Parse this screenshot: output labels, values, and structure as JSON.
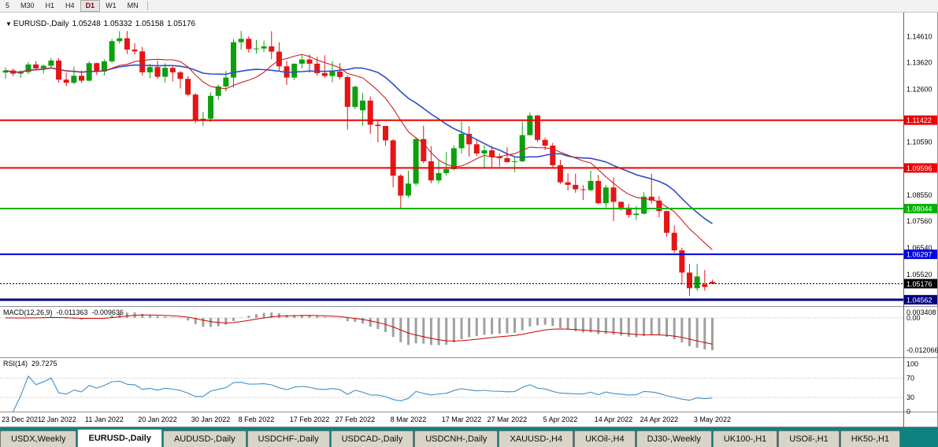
{
  "toolbar": {
    "timeframes": [
      "5",
      "M30",
      "H1",
      "H4",
      "D1",
      "W1",
      "MN"
    ],
    "selected": "D1"
  },
  "header": {
    "symbol": "EURUSD-,Daily",
    "open": "1.05248",
    "high": "1.05332",
    "low": "1.05158",
    "close": "1.05176"
  },
  "price_axis": {
    "labels": [
      {
        "text": "1.14610",
        "price": 1.1461
      },
      {
        "text": "1.13620",
        "price": 1.1362
      },
      {
        "text": "1.12600",
        "price": 1.126
      },
      {
        "text": "1.10590",
        "price": 1.1059
      },
      {
        "text": "1.08550",
        "price": 1.0855
      },
      {
        "text": "1.07560",
        "price": 1.0756
      },
      {
        "text": "1.06540",
        "price": 1.0654
      },
      {
        "text": "1.05520",
        "price": 1.0552
      }
    ]
  },
  "hlines": [
    {
      "price": 1.11422,
      "label": "1.11422",
      "color": "#ee0000",
      "width": 2
    },
    {
      "price": 1.09596,
      "label": "1.09596",
      "color": "#ee0000",
      "width": 2
    },
    {
      "price": 1.08044,
      "label": "1.08044",
      "color": "#00b400",
      "width": 2
    },
    {
      "price": 1.06297,
      "label": "1.06297",
      "color": "#0000e0",
      "width": 2
    },
    {
      "price": 1.04562,
      "label": "1.04562",
      "color": "#000080",
      "width": 3
    }
  ],
  "price_line": {
    "price": 1.05176,
    "label": "1.05176",
    "color": "#000000"
  },
  "macd": {
    "title": "MACD(12,26,9)",
    "value_main": "-0.011363",
    "value_signal": "-0.009636",
    "axis": {
      "max": "0.003408",
      "zero": "0.00",
      "min": "-0.012066"
    }
  },
  "rsi": {
    "title": "RSI(14)",
    "value": "29.7275",
    "axis": [
      {
        "text": "100",
        "value": 100
      },
      {
        "text": "70",
        "value": 70
      },
      {
        "text": "30",
        "value": 30
      },
      {
        "text": "0",
        "value": 0
      }
    ],
    "levels": [
      70,
      30
    ]
  },
  "x_axis": {
    "labels": [
      "23 Dec 2021",
      "2 Jan 2022",
      "11 Jan 2022",
      "20 Jan 2022",
      "30 Jan 2022",
      "8 Feb 2022",
      "17 Feb 2022",
      "27 Feb 2022",
      "8 Mar 2022",
      "17 Mar 2022",
      "27 Mar 2022",
      "5 Apr 2022",
      "14 Apr 2022",
      "24 Apr 2022",
      "3 May 2022"
    ],
    "candle_indices": [
      0,
      7,
      13,
      20,
      27,
      33,
      40,
      46,
      53,
      60,
      66,
      73,
      80,
      86,
      93
    ]
  },
  "tabs": [
    {
      "label": "USDX,Weekly",
      "active": false
    },
    {
      "label": "EURUSD-,Daily",
      "active": true
    },
    {
      "label": "AUDUSD-,Daily",
      "active": false
    },
    {
      "label": "USDCHF-,Daily",
      "active": false
    },
    {
      "label": "USDCAD-,Daily",
      "active": false
    },
    {
      "label": "USDCNH-,Daily",
      "active": false
    },
    {
      "label": "XAUUSD-,H4",
      "active": false
    },
    {
      "label": "UKOil-,H4",
      "active": false
    },
    {
      "label": "DJ30-,Weekly",
      "active": false
    },
    {
      "label": "UK100-,H1",
      "active": false
    },
    {
      "label": "USOil-,H1",
      "active": false
    },
    {
      "label": "HK50-,H1",
      "active": false
    }
  ],
  "theme": {
    "candle_up": "#0ca00c",
    "candle_down": "#e51515",
    "ma_slow": "#2f4fc6",
    "ma_fast": "#cc2020",
    "macd_hist": "#a0a0a0",
    "macd_signal": "#cc0000",
    "rsi_line": "#4090c8",
    "grid_dotted": "#b0b0b0",
    "tabbar_bg": "#0e8181",
    "toolbar_bg": "#f2f2f2",
    "chart_bg": "#ffffff"
  },
  "chart_data": {
    "type": "candlestick",
    "symbol": "EURUSD-",
    "timeframe": "Daily",
    "visible_price_range": [
      1.0435,
      1.1553
    ],
    "ohlc_format": "[open, high, low, close]",
    "candles": [
      [
        1.1324,
        1.1344,
        1.13,
        1.1332
      ],
      [
        1.1332,
        1.134,
        1.131,
        1.132
      ],
      [
        1.132,
        1.1333,
        1.1304,
        1.1326
      ],
      [
        1.1326,
        1.1365,
        1.1318,
        1.1355
      ],
      [
        1.1355,
        1.1368,
        1.1332,
        1.134
      ],
      [
        1.134,
        1.1355,
        1.132,
        1.135
      ],
      [
        1.135,
        1.138,
        1.1342,
        1.137
      ],
      [
        1.137,
        1.1379,
        1.1285,
        1.1297
      ],
      [
        1.1297,
        1.1324,
        1.1272,
        1.1285
      ],
      [
        1.1285,
        1.1347,
        1.128,
        1.1312
      ],
      [
        1.1312,
        1.1332,
        1.1285,
        1.1293
      ],
      [
        1.1293,
        1.1367,
        1.129,
        1.136
      ],
      [
        1.136,
        1.1362,
        1.1315,
        1.1328
      ],
      [
        1.1328,
        1.1375,
        1.1313,
        1.1367
      ],
      [
        1.1367,
        1.1453,
        1.136,
        1.1444
      ],
      [
        1.1444,
        1.1482,
        1.1435,
        1.1455
      ],
      [
        1.1455,
        1.1483,
        1.1395,
        1.1412
      ],
      [
        1.1412,
        1.1436,
        1.1392,
        1.1405
      ],
      [
        1.1405,
        1.1422,
        1.1313,
        1.1325
      ],
      [
        1.1325,
        1.1357,
        1.1302,
        1.1345
      ],
      [
        1.1345,
        1.1369,
        1.13,
        1.1308
      ],
      [
        1.1308,
        1.136,
        1.1286,
        1.1342
      ],
      [
        1.1342,
        1.1348,
        1.129,
        1.1325
      ],
      [
        1.1325,
        1.133,
        1.1264,
        1.13
      ],
      [
        1.13,
        1.131,
        1.1233,
        1.124
      ],
      [
        1.124,
        1.1245,
        1.1131,
        1.1144
      ],
      [
        1.1144,
        1.1174,
        1.1121,
        1.1148
      ],
      [
        1.1148,
        1.1248,
        1.1135,
        1.1235
      ],
      [
        1.1235,
        1.1279,
        1.122,
        1.1271
      ],
      [
        1.1271,
        1.133,
        1.1252,
        1.1305
      ],
      [
        1.1305,
        1.1452,
        1.1266,
        1.144
      ],
      [
        1.144,
        1.1483,
        1.1411,
        1.1453
      ],
      [
        1.1453,
        1.1462,
        1.14,
        1.1414
      ],
      [
        1.1414,
        1.1448,
        1.1396,
        1.1416
      ],
      [
        1.1416,
        1.1446,
        1.1402,
        1.1424
      ],
      [
        1.1424,
        1.1482,
        1.1375,
        1.1404
      ],
      [
        1.1404,
        1.144,
        1.133,
        1.1348
      ],
      [
        1.1348,
        1.1368,
        1.1277,
        1.1305
      ],
      [
        1.1305,
        1.1359,
        1.1295,
        1.1358
      ],
      [
        1.1358,
        1.1395,
        1.134,
        1.1374
      ],
      [
        1.1374,
        1.1393,
        1.1324,
        1.1358
      ],
      [
        1.1358,
        1.1384,
        1.1312,
        1.1322
      ],
      [
        1.1322,
        1.139,
        1.1305,
        1.1311
      ],
      [
        1.1311,
        1.1368,
        1.1287,
        1.1328
      ],
      [
        1.1328,
        1.136,
        1.1298,
        1.1307
      ],
      [
        1.1307,
        1.1314,
        1.1106,
        1.1193
      ],
      [
        1.1193,
        1.1274,
        1.1184,
        1.127
      ],
      [
        1.118,
        1.1246,
        1.1121,
        1.1217
      ],
      [
        1.1217,
        1.1233,
        1.109,
        1.1125
      ],
      [
        1.1125,
        1.1144,
        1.1058,
        1.112
      ],
      [
        1.112,
        1.1121,
        1.1045,
        1.1065
      ],
      [
        1.1065,
        1.107,
        1.0886,
        1.093
      ],
      [
        1.093,
        1.0936,
        1.0806,
        1.0854
      ],
      [
        1.0854,
        1.095,
        1.0846,
        1.09
      ],
      [
        1.09,
        1.1078,
        1.0892,
        1.107
      ],
      [
        1.107,
        1.1121,
        1.0977,
        1.0985
      ],
      [
        1.0985,
        1.1043,
        1.0901,
        1.0912
      ],
      [
        1.0912,
        1.0992,
        1.0902,
        1.094
      ],
      [
        1.094,
        1.102,
        1.093,
        1.0955
      ],
      [
        1.0955,
        1.1046,
        1.095,
        1.1035
      ],
      [
        1.1035,
        1.1137,
        1.1015,
        1.109
      ],
      [
        1.109,
        1.1119,
        1.1003,
        1.105
      ],
      [
        1.105,
        1.1069,
        1.1005,
        1.1015
      ],
      [
        1.1015,
        1.1046,
        1.0962,
        1.1027
      ],
      [
        1.1027,
        1.1044,
        1.0963,
        1.1003
      ],
      [
        1.1003,
        1.1014,
        1.0965,
        1.0997
      ],
      [
        1.0997,
        1.1039,
        1.098,
        1.0982
      ],
      [
        1.0982,
        1.1,
        1.0944,
        1.0985
      ],
      [
        1.0985,
        1.1137,
        1.0982,
        1.1085
      ],
      [
        1.1085,
        1.1171,
        1.1083,
        1.116
      ],
      [
        1.116,
        1.1162,
        1.106,
        1.1067
      ],
      [
        1.1067,
        1.1076,
        1.1027,
        1.1045
      ],
      [
        1.1045,
        1.1055,
        1.096,
        1.097
      ],
      [
        1.097,
        1.099,
        1.0898,
        1.0905
      ],
      [
        1.0905,
        1.0939,
        1.0874,
        1.0895
      ],
      [
        1.0895,
        1.0938,
        1.0865,
        1.0878
      ],
      [
        1.0878,
        1.0894,
        1.0837,
        1.0875
      ],
      [
        1.0875,
        1.095,
        1.0871,
        1.091
      ],
      [
        1.091,
        1.0933,
        1.0821,
        1.0825
      ],
      [
        1.0825,
        1.0895,
        1.0809,
        1.0885
      ],
      [
        1.0885,
        1.0923,
        1.0757,
        1.083
      ],
      [
        1.083,
        1.0832,
        1.0797,
        1.0808
      ],
      [
        1.0808,
        1.0822,
        1.0769,
        1.078
      ],
      [
        1.078,
        1.0815,
        1.0761,
        1.0785
      ],
      [
        1.0785,
        1.0867,
        1.0782,
        1.085
      ],
      [
        1.085,
        1.0937,
        1.0824,
        1.0835
      ],
      [
        1.0835,
        1.0852,
        1.077,
        1.0795
      ],
      [
        1.0795,
        1.0797,
        1.0697,
        1.0712
      ],
      [
        1.0712,
        1.074,
        1.0635,
        1.0645
      ],
      [
        1.0645,
        1.0655,
        1.0514,
        1.056
      ],
      [
        1.056,
        1.0593,
        1.047,
        1.05
      ],
      [
        1.05,
        1.0593,
        1.049,
        1.0545
      ],
      [
        1.0515,
        1.057,
        1.0491,
        1.0505
      ],
      [
        1.05248,
        1.05332,
        1.05158,
        1.05176
      ]
    ]
  }
}
